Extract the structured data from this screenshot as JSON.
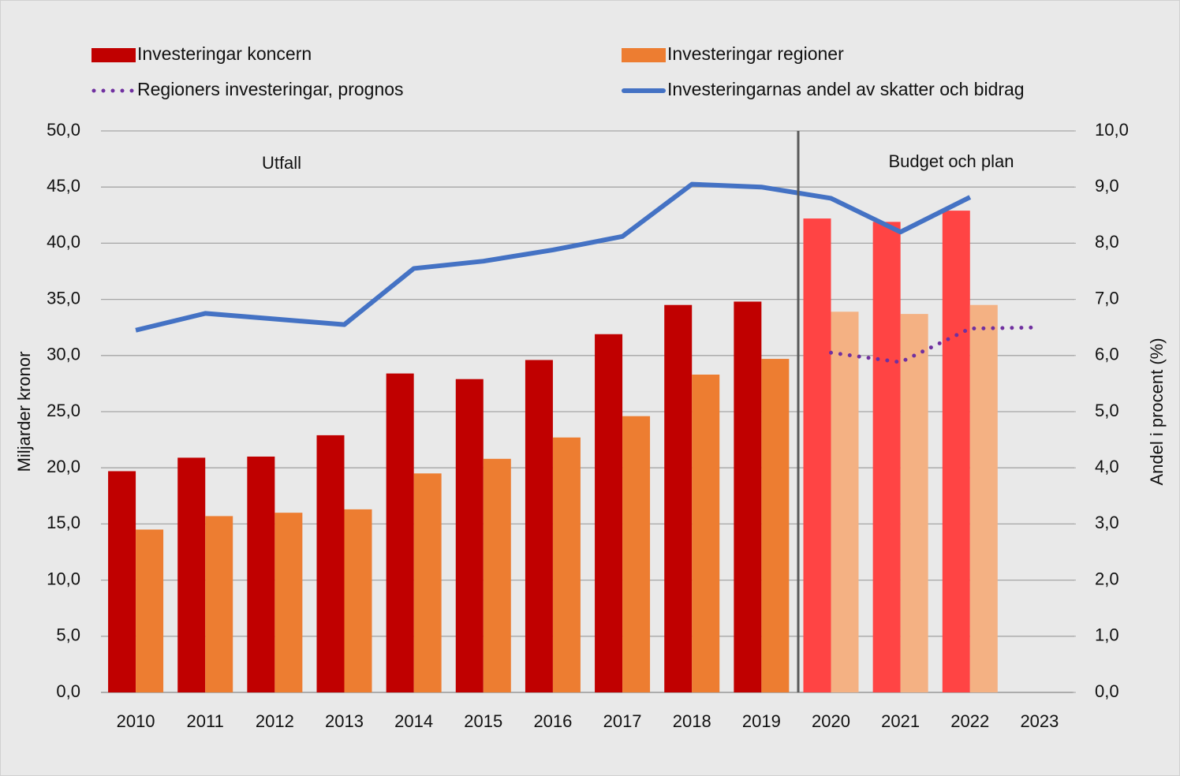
{
  "chart_data": {
    "type": "bar",
    "categories": [
      "2010",
      "2011",
      "2012",
      "2013",
      "2014",
      "2015",
      "2016",
      "2017",
      "2018",
      "2019",
      "2020",
      "2021",
      "2022",
      "2023"
    ],
    "series": [
      {
        "name": "Investeringar koncern",
        "type": "bar",
        "color": "#c00000",
        "colors": [
          "#c00000",
          "#c00000",
          "#c00000",
          "#c00000",
          "#c00000",
          "#c00000",
          "#c00000",
          "#c00000",
          "#c00000",
          "#c00000",
          "#ff4444",
          "#ff4444",
          "#ff4444",
          "#ff4444"
        ],
        "values": [
          19.7,
          20.9,
          21.0,
          22.9,
          28.4,
          27.9,
          29.6,
          31.9,
          34.5,
          34.8,
          42.2,
          41.9,
          42.9,
          null
        ]
      },
      {
        "name": "Investeringar regioner",
        "type": "bar",
        "color": "#ed7d31",
        "colors": [
          "#ed7d31",
          "#ed7d31",
          "#ed7d31",
          "#ed7d31",
          "#ed7d31",
          "#ed7d31",
          "#ed7d31",
          "#ed7d31",
          "#ed7d31",
          "#ed7d31",
          "#f4b183",
          "#f4b183",
          "#f4b183",
          "#f4b183"
        ],
        "values": [
          14.5,
          15.7,
          16.0,
          16.3,
          19.5,
          20.8,
          22.7,
          24.6,
          28.3,
          29.7,
          33.9,
          33.7,
          34.5,
          null
        ]
      },
      {
        "name": "Regioners investeringar, prognos",
        "type": "dotted",
        "axis": "y2",
        "color": "#7030a0",
        "values": [
          null,
          null,
          null,
          null,
          null,
          null,
          null,
          null,
          null,
          null,
          6.05,
          5.88,
          6.48,
          6.5
        ]
      },
      {
        "name": "Investeringarnas andel av skatter och bidrag",
        "type": "line",
        "axis": "y2",
        "color": "#4472c4",
        "values": [
          6.45,
          6.75,
          6.65,
          6.55,
          7.55,
          7.68,
          7.88,
          8.12,
          9.05,
          9.0,
          8.8,
          8.2,
          8.82,
          null
        ]
      }
    ],
    "ylabel": "Miljarder kronor",
    "y2label": "Andel i procent (%)",
    "annotations": [
      "Utfall",
      "Budget och plan"
    ],
    "ylim": [
      0,
      50
    ],
    "yticks": [
      {
        "value": 0,
        "label": "0,0"
      },
      {
        "value": 5,
        "label": "5,0"
      },
      {
        "value": 10,
        "label": "10,0"
      },
      {
        "value": 15,
        "label": "15,0"
      },
      {
        "value": 20,
        "label": "20,0"
      },
      {
        "value": 25,
        "label": "25,0"
      },
      {
        "value": 30,
        "label": "30,0"
      },
      {
        "value": 35,
        "label": "35,0"
      },
      {
        "value": 40,
        "label": "40,0"
      },
      {
        "value": 45,
        "label": "45,0"
      },
      {
        "value": 50,
        "label": "50,0"
      }
    ],
    "y2lim": [
      0,
      10
    ],
    "y2ticks": [
      {
        "value": 0,
        "label": "0,0"
      },
      {
        "value": 1,
        "label": "1,0"
      },
      {
        "value": 2,
        "label": "2,0"
      },
      {
        "value": 3,
        "label": "3,0"
      },
      {
        "value": 4,
        "label": "4,0"
      },
      {
        "value": 5,
        "label": "5,0"
      },
      {
        "value": 6,
        "label": "6,0"
      },
      {
        "value": 7,
        "label": "7,0"
      },
      {
        "value": 8,
        "label": "8,0"
      },
      {
        "value": 9,
        "label": "9,0"
      },
      {
        "value": 10,
        "label": "10,0"
      }
    ],
    "grid": true
  }
}
